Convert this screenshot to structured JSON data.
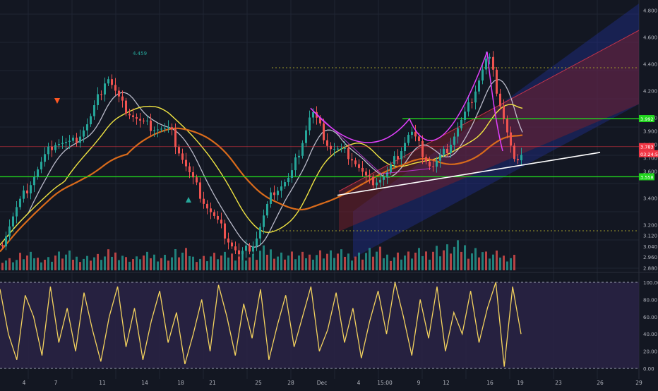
{
  "colors": {
    "background": "#131722",
    "grid": "#1f2433",
    "candle_up": "#26a69a",
    "candle_down": "#ef5350",
    "oscillator": "#f4d35e",
    "oscillator_bg": "#2a2345",
    "green_level": "#22d61e",
    "red_level": "#f23645",
    "trendline": "#ffffff",
    "pitchfork_blue": "#1e2f8c",
    "pitchfork_red": "#7a1f2a",
    "pattern_magenta": "#e040fb",
    "ma_yellow": "#f0e442",
    "ma_orange": "#d96b1b",
    "ma_white": "#d8d8e8",
    "text": "#b2b5be"
  },
  "price_axis": {
    "ticks": [
      "4.800",
      "4.600",
      "4.400",
      "4.200",
      "4.000",
      "3.900",
      "3.800",
      "3.700",
      "3.600",
      "3.400",
      "3.200",
      "3.120",
      "3.040",
      "2.960",
      "2.880"
    ],
    "markers": [
      {
        "id": "green-top",
        "text": "3.992",
        "color": "#22d61e"
      },
      {
        "id": "current",
        "text": "3.783",
        "color": "#f23645"
      },
      {
        "id": "countdown",
        "text": "03:24:52",
        "color": "#f23645"
      },
      {
        "id": "green-bottom",
        "text": "3.558",
        "color": "#22d61e"
      }
    ]
  },
  "osc_axis": {
    "ticks": [
      "100.00",
      "80.00",
      "60.00",
      "40.00",
      "20.00",
      "0.00"
    ]
  },
  "time_axis": {
    "labels": [
      "4",
      "7",
      "11",
      "14",
      "18",
      "21",
      "25",
      "28",
      "Dec",
      "4",
      "15:00",
      "9",
      "12",
      "16",
      "19",
      "23",
      "26",
      "29"
    ]
  },
  "annotations": {
    "peak_label": "4.459"
  },
  "chart_data": {
    "type": "candlestick",
    "title": "",
    "ylim": [
      2.85,
      4.85
    ],
    "oscillator_ylim": [
      0,
      100
    ],
    "levels": [
      {
        "name": "green-top",
        "value": 3.992
      },
      {
        "name": "green-bottom",
        "value": 3.558
      },
      {
        "name": "current-price",
        "value": 3.783
      }
    ],
    "price_path": [
      {
        "x": 0,
        "y": 3.05
      },
      {
        "x": 20,
        "y": 3.3
      },
      {
        "x": 45,
        "y": 3.55
      },
      {
        "x": 75,
        "y": 3.82
      },
      {
        "x": 100,
        "y": 3.8
      },
      {
        "x": 125,
        "y": 3.97
      },
      {
        "x": 150,
        "y": 4.32
      },
      {
        "x": 170,
        "y": 4.1
      },
      {
        "x": 200,
        "y": 3.95
      },
      {
        "x": 240,
        "y": 3.9
      },
      {
        "x": 265,
        "y": 3.6
      },
      {
        "x": 290,
        "y": 3.35
      },
      {
        "x": 315,
        "y": 3.15
      },
      {
        "x": 338,
        "y": 2.96
      },
      {
        "x": 360,
        "y": 3.08
      },
      {
        "x": 385,
        "y": 3.45
      },
      {
        "x": 410,
        "y": 3.55
      },
      {
        "x": 440,
        "y": 4.05
      },
      {
        "x": 465,
        "y": 3.78
      },
      {
        "x": 495,
        "y": 3.72
      },
      {
        "x": 520,
        "y": 3.52
      },
      {
        "x": 545,
        "y": 3.56
      },
      {
        "x": 580,
        "y": 3.9
      },
      {
        "x": 610,
        "y": 3.62
      },
      {
        "x": 630,
        "y": 3.75
      },
      {
        "x": 660,
        "y": 4.05
      },
      {
        "x": 690,
        "y": 4.47
      },
      {
        "x": 712,
        "y": 4.0
      },
      {
        "x": 730,
        "y": 3.6
      },
      {
        "x": 738,
        "y": 3.78
      }
    ],
    "volume_profile": [
      0.35,
      0.55,
      0.4,
      0.6,
      0.45,
      0.5,
      0.65,
      0.4,
      0.55,
      0.5,
      0.7,
      0.45,
      0.55,
      0.6,
      0.5,
      0.8,
      0.6,
      0.55,
      0.7,
      0.65,
      0.6,
      0.75,
      0.55,
      0.6,
      0.7,
      0.9,
      1.0,
      0.8,
      0.6,
      0.5
    ],
    "oscillator": [
      92,
      40,
      10,
      85,
      60,
      15,
      95,
      30,
      70,
      20,
      88,
      45,
      8,
      60,
      95,
      25,
      70,
      10,
      55,
      90,
      30,
      65,
      5,
      40,
      80,
      20,
      97,
      60,
      15,
      75,
      35,
      92,
      10,
      50,
      85,
      25,
      60,
      95,
      20,
      45,
      88,
      30,
      70,
      12,
      55,
      90,
      40,
      100,
      60,
      15,
      80,
      35,
      95,
      20,
      65,
      40,
      90,
      30,
      70,
      100,
      2,
      95,
      40
    ]
  }
}
